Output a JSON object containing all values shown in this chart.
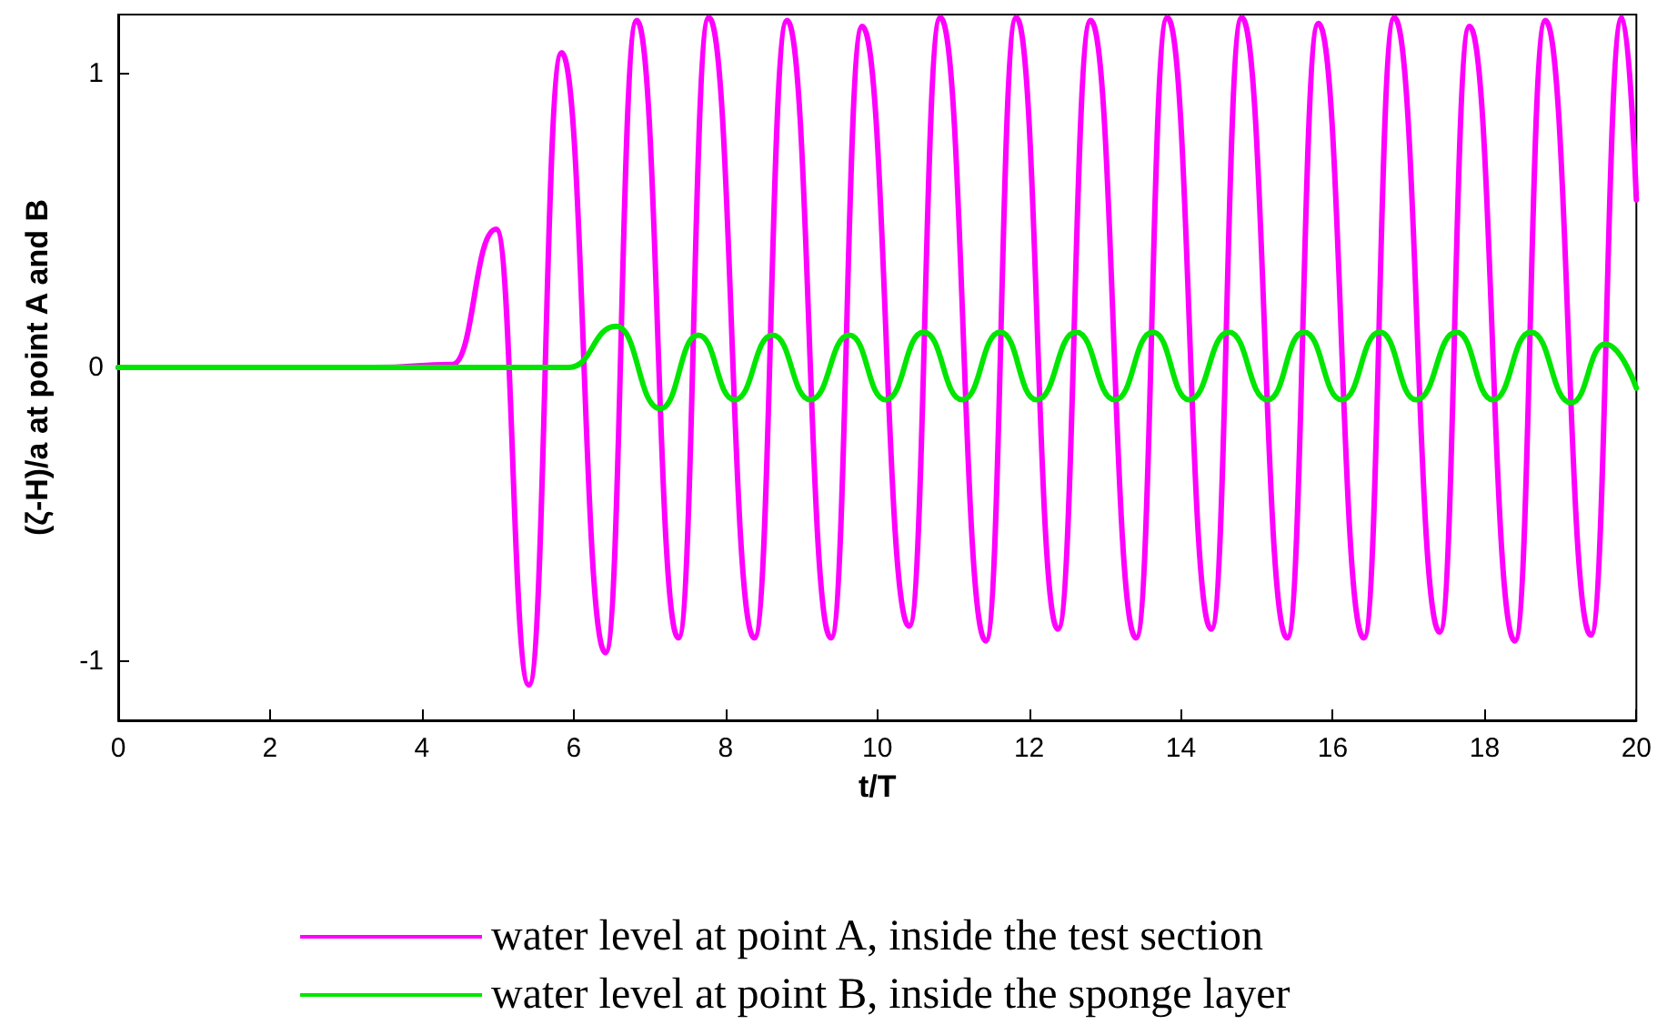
{
  "chart_data": {
    "type": "line",
    "xlabel": "t/T",
    "ylabel": "(ζ-H)/a at point A and B",
    "xlim": [
      0,
      20
    ],
    "xticks": [
      0,
      2,
      4,
      6,
      8,
      10,
      12,
      14,
      16,
      18,
      20
    ],
    "ylim": [
      -1.2,
      1.2
    ],
    "yticks": [
      -1,
      0,
      1
    ],
    "grid": false,
    "legend": "bottom",
    "marker": "none",
    "line_style": "solid",
    "series": [
      {
        "name": "water level at point A, inside the test section",
        "color": "#ff00ff",
        "x": [
          0,
          3.4,
          4.4,
          4.98,
          5.41,
          5.84,
          6.42,
          6.83,
          7.38,
          7.78,
          8.38,
          8.81,
          9.39,
          9.8,
          10.42,
          10.83,
          11.43,
          11.83,
          12.38,
          12.81,
          13.41,
          13.82,
          14.4,
          14.8,
          15.4,
          15.81,
          16.41,
          16.81,
          17.41,
          17.8,
          18.4,
          18.8,
          19.4,
          19.81,
          20
        ],
        "values": [
          0,
          0,
          0.01,
          0.47,
          -1.08,
          1.07,
          -0.97,
          1.18,
          -0.92,
          1.19,
          -0.92,
          1.18,
          -0.92,
          1.16,
          -0.88,
          1.19,
          -0.93,
          1.19,
          -0.89,
          1.18,
          -0.92,
          1.19,
          -0.89,
          1.19,
          -0.92,
          1.17,
          -0.92,
          1.19,
          -0.9,
          1.16,
          -0.93,
          1.18,
          -0.91,
          1.19,
          0.57
        ]
      },
      {
        "name": "water level at point B, inside the sponge layer",
        "color": "#00e600",
        "x": [
          0,
          5.94,
          6.56,
          7.14,
          7.64,
          8.12,
          8.62,
          9.12,
          9.63,
          10.11,
          10.61,
          11.12,
          11.62,
          12.1,
          12.62,
          13.13,
          13.63,
          14.11,
          14.63,
          15.14,
          15.62,
          16.12,
          16.62,
          17.1,
          17.63,
          18.11,
          18.61,
          19.14,
          19.59,
          20
        ],
        "values": [
          0,
          0,
          0.14,
          -0.14,
          0.11,
          -0.11,
          0.11,
          -0.11,
          0.11,
          -0.11,
          0.12,
          -0.11,
          0.12,
          -0.11,
          0.12,
          -0.11,
          0.12,
          -0.11,
          0.12,
          -0.11,
          0.12,
          -0.11,
          0.12,
          -0.11,
          0.12,
          -0.11,
          0.12,
          -0.12,
          0.08,
          -0.07
        ]
      }
    ]
  }
}
